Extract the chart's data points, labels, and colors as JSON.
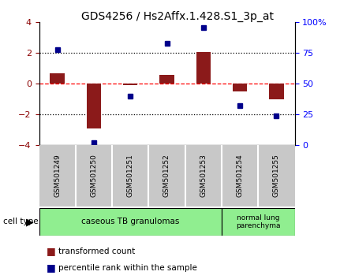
{
  "title": "GDS4256 / Hs2Affx.1.428.S1_3p_at",
  "samples": [
    "GSM501249",
    "GSM501250",
    "GSM501251",
    "GSM501252",
    "GSM501253",
    "GSM501254",
    "GSM501255"
  ],
  "transformed_counts": [
    0.7,
    -2.9,
    -0.1,
    0.6,
    2.05,
    -0.5,
    -1.0
  ],
  "percentile_ranks": [
    78,
    2,
    40,
    83,
    96,
    32,
    24
  ],
  "ylim_left": [
    -4,
    4
  ],
  "ylim_right": [
    0,
    100
  ],
  "bar_color": "#8B1A1A",
  "dot_color": "#00008B",
  "group1_label": "caseous TB granulomas",
  "group2_label": "normal lung\nparenchyma",
  "group1_color": "#90EE90",
  "group2_color": "#90EE90",
  "group1_samples": [
    0,
    1,
    2,
    3,
    4
  ],
  "group2_samples": [
    5,
    6
  ],
  "cell_type_label": "cell type",
  "legend_red_label": "transformed count",
  "legend_blue_label": "percentile rank within the sample",
  "left_yticks": [
    -4,
    -2,
    0,
    2,
    4
  ],
  "right_yticks": [
    0,
    25,
    50,
    75,
    100
  ],
  "xticklabel_bg": "#c8c8c8",
  "xticklabel_border": "#ffffff"
}
